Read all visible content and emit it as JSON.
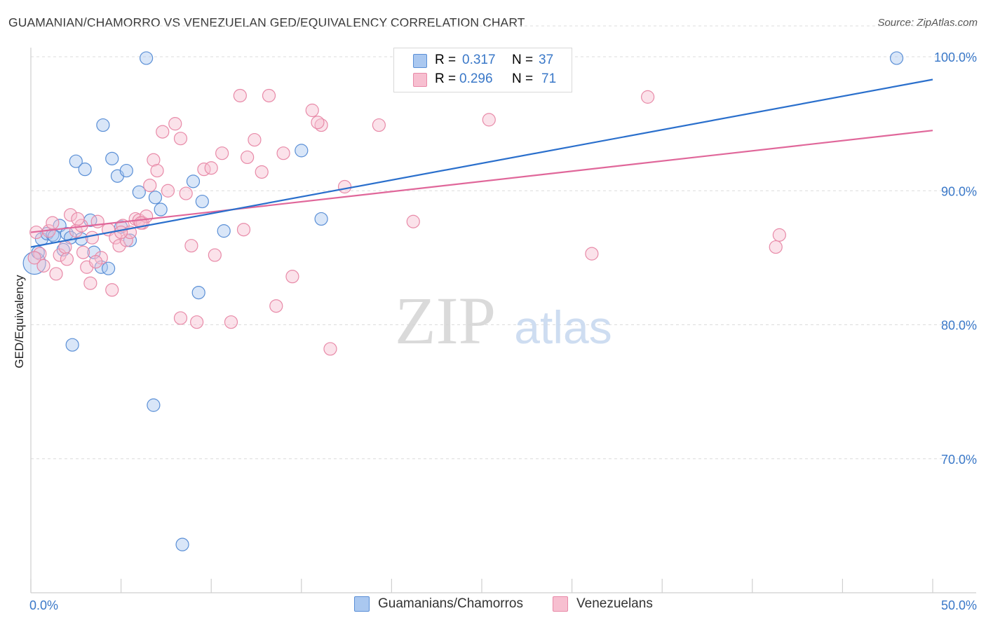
{
  "title": "GUAMANIAN/CHAMORRO VS VENEZUELAN GED/EQUIVALENCY CORRELATION CHART",
  "source": "Source: ZipAtlas.com",
  "watermark": {
    "zip": "ZIP",
    "atlas": "atlas"
  },
  "legend": {
    "r_label": "R =",
    "n_label": "N =",
    "series1": {
      "r": "0.317",
      "n": "37"
    },
    "series2": {
      "r": "0.296",
      "n": "71"
    }
  },
  "bottom_legend": {
    "series1": "Guamanians/Chamorros",
    "series2": "Venezuelans"
  },
  "colors": {
    "blue_fill": "#aac8f0",
    "blue_stroke": "#5a8fd6",
    "blue_line": "#2a6fcc",
    "pink_fill": "#f7bfd0",
    "pink_stroke": "#e88aa8",
    "pink_line": "#e0679a",
    "tick_label": "#3a78c8",
    "grid": "#dcdcdc"
  },
  "chart_data": {
    "type": "scatter",
    "title": "GUAMANIAN/CHAMORRO VS VENEZUELAN GED/EQUIVALENCY CORRELATION CHART",
    "xlabel": "",
    "ylabel": "GED/Equivalency",
    "xlim": [
      0,
      50
    ],
    "ylim": [
      60,
      104
    ],
    "x_tick_labels": [
      "0.0%",
      "50.0%"
    ],
    "y_ticks": [
      70,
      80,
      90,
      100
    ],
    "y_tick_labels": [
      "70.0%",
      "80.0%",
      "90.0%",
      "100.0%"
    ],
    "grid": true,
    "legend_position": "top-center",
    "series": [
      {
        "name": "Guamanians/Chamorros",
        "r": 0.317,
        "n": 37,
        "trend": {
          "x": [
            0,
            50
          ],
          "y": [
            85.8,
            98.3
          ]
        },
        "points": [
          [
            0.2,
            84.6
          ],
          [
            0.4,
            85.4
          ],
          [
            0.6,
            86.4
          ],
          [
            0.9,
            86.8
          ],
          [
            1.2,
            86.7
          ],
          [
            1.6,
            87.4
          ],
          [
            1.8,
            85.6
          ],
          [
            2.0,
            86.8
          ],
          [
            2.5,
            92.2
          ],
          [
            2.8,
            86.4
          ],
          [
            3.0,
            91.6
          ],
          [
            3.3,
            87.8
          ],
          [
            3.5,
            85.4
          ],
          [
            3.9,
            84.3
          ],
          [
            4.0,
            94.9
          ],
          [
            4.3,
            84.2
          ],
          [
            4.5,
            92.4
          ],
          [
            4.8,
            91.1
          ],
          [
            5.0,
            87.3
          ],
          [
            5.3,
            91.5
          ],
          [
            5.5,
            86.3
          ],
          [
            6.0,
            89.9
          ],
          [
            6.4,
            99.9
          ],
          [
            6.9,
            89.5
          ],
          [
            7.2,
            88.6
          ],
          [
            9.0,
            90.7
          ],
          [
            9.5,
            89.2
          ],
          [
            10.7,
            87.0
          ],
          [
            15.0,
            93.0
          ],
          [
            16.1,
            87.9
          ],
          [
            48.0,
            99.9
          ],
          [
            2.3,
            78.5
          ],
          [
            6.8,
            74.0
          ],
          [
            8.4,
            63.6
          ],
          [
            9.3,
            82.4
          ],
          [
            1.3,
            86.6
          ],
          [
            2.2,
            86.5
          ]
        ]
      },
      {
        "name": "Venezuelans",
        "r": 0.296,
        "n": 71,
        "trend": {
          "x": [
            0,
            50
          ],
          "y": [
            86.9,
            94.5
          ]
        },
        "points": [
          [
            0.3,
            86.9
          ],
          [
            0.5,
            85.3
          ],
          [
            0.7,
            84.4
          ],
          [
            1.0,
            87.0
          ],
          [
            1.2,
            87.6
          ],
          [
            1.4,
            83.8
          ],
          [
            1.6,
            85.2
          ],
          [
            1.9,
            85.8
          ],
          [
            2.0,
            84.9
          ],
          [
            2.2,
            88.2
          ],
          [
            2.5,
            87.0
          ],
          [
            2.8,
            87.4
          ],
          [
            2.9,
            85.4
          ],
          [
            3.1,
            84.3
          ],
          [
            3.3,
            83.1
          ],
          [
            3.4,
            86.5
          ],
          [
            3.7,
            87.7
          ],
          [
            3.9,
            85.0
          ],
          [
            4.3,
            87.1
          ],
          [
            4.5,
            82.6
          ],
          [
            4.7,
            86.5
          ],
          [
            4.9,
            85.9
          ],
          [
            5.1,
            87.4
          ],
          [
            5.3,
            86.3
          ],
          [
            5.5,
            86.9
          ],
          [
            5.8,
            87.9
          ],
          [
            6.0,
            87.8
          ],
          [
            6.2,
            87.6
          ],
          [
            6.4,
            88.1
          ],
          [
            6.6,
            90.4
          ],
          [
            6.8,
            92.3
          ],
          [
            7.0,
            91.5
          ],
          [
            7.3,
            94.4
          ],
          [
            7.6,
            90.0
          ],
          [
            8.0,
            95.0
          ],
          [
            8.3,
            93.9
          ],
          [
            8.6,
            89.8
          ],
          [
            8.9,
            85.9
          ],
          [
            9.2,
            80.2
          ],
          [
            9.6,
            91.6
          ],
          [
            10.0,
            91.7
          ],
          [
            10.2,
            85.2
          ],
          [
            10.6,
            92.8
          ],
          [
            11.1,
            80.2
          ],
          [
            11.6,
            97.1
          ],
          [
            12.0,
            92.5
          ],
          [
            12.4,
            93.8
          ],
          [
            12.8,
            91.4
          ],
          [
            13.2,
            97.1
          ],
          [
            13.6,
            81.4
          ],
          [
            14.0,
            92.8
          ],
          [
            14.5,
            83.6
          ],
          [
            15.6,
            96.0
          ],
          [
            16.1,
            94.9
          ],
          [
            16.6,
            78.2
          ],
          [
            17.4,
            90.3
          ],
          [
            19.3,
            94.9
          ],
          [
            21.2,
            87.7
          ],
          [
            25.4,
            95.3
          ],
          [
            31.1,
            85.3
          ],
          [
            34.2,
            97.0
          ],
          [
            41.3,
            85.8
          ],
          [
            41.5,
            86.7
          ],
          [
            11.8,
            87.1
          ],
          [
            8.3,
            80.5
          ],
          [
            15.9,
            95.1
          ],
          [
            3.6,
            84.7
          ],
          [
            5.0,
            86.9
          ],
          [
            6.1,
            87.6
          ],
          [
            0.2,
            85.0
          ],
          [
            2.6,
            87.9
          ]
        ]
      }
    ]
  }
}
